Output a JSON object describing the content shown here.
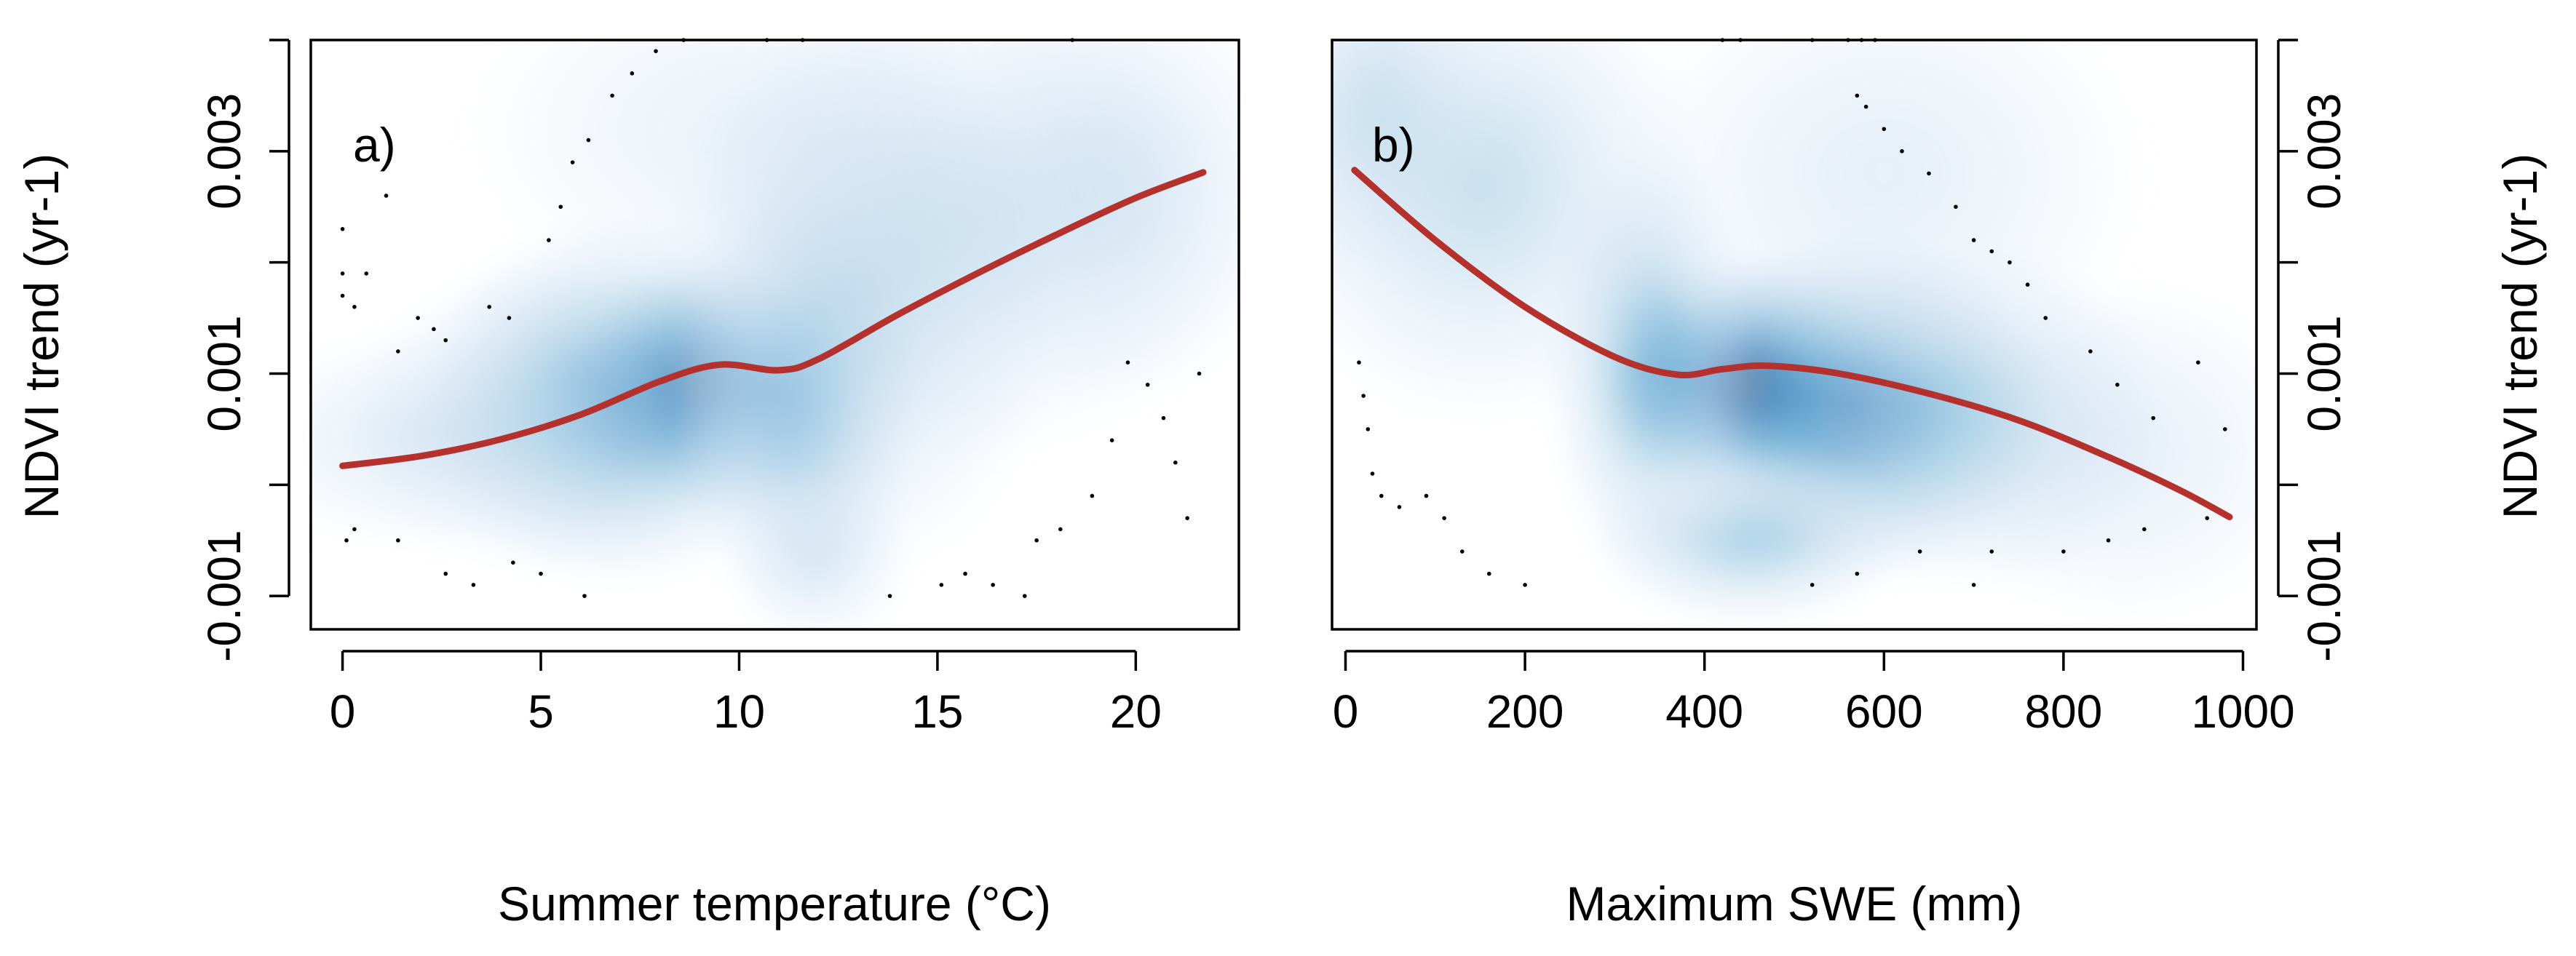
{
  "chart_data": [
    {
      "id": "a",
      "type": "scatter",
      "subtype": "smoothed-density-scatter-with-smoother",
      "panel_label": "a)",
      "xlabel": "Summer temperature (°C)",
      "ylabel": "NDVI trend (yr-1)",
      "y_axis_side": "left",
      "xlim": [
        -0.8,
        22.6
      ],
      "ylim": [
        -0.0013,
        0.004
      ],
      "xticks": [
        0,
        5,
        10,
        15,
        20
      ],
      "xtick_labels": [
        "0",
        "5",
        "10",
        "15",
        "20"
      ],
      "yticks": [
        -0.001,
        0,
        0.001,
        0.002,
        0.003,
        0.004
      ],
      "ytick_labels": [
        "-0.001",
        "",
        "0.001",
        "",
        "0.003",
        ""
      ],
      "series": [
        {
          "name": "smoother",
          "color": "#b5312d",
          "x": [
            0.0,
            2.0,
            4.0,
            6.0,
            8.0,
            9.5,
            11.0,
            12.0,
            14.0,
            16.0,
            18.0,
            20.0,
            21.7
          ],
          "y": [
            0.00017,
            0.00026,
            0.00041,
            0.00063,
            0.00093,
            0.00108,
            0.00103,
            0.00113,
            0.00153,
            0.0019,
            0.00225,
            0.00258,
            0.00281
          ]
        }
      ],
      "density": {
        "colormap": "Blues",
        "cores": [
          {
            "x": 9.0,
            "y": 0.0009,
            "sx": 1.6,
            "sy": 0.00058,
            "w": 1.0
          },
          {
            "x": 7.0,
            "y": 0.00075,
            "sx": 2.6,
            "sy": 0.00085,
            "w": 0.6
          },
          {
            "x": 11.5,
            "y": 0.0008,
            "sx": 1.6,
            "sy": 0.001,
            "w": 0.5
          },
          {
            "x": 5.0,
            "y": 0.0006,
            "sx": 2.5,
            "sy": 0.0007,
            "w": 0.28
          },
          {
            "x": 13.0,
            "y": 0.0017,
            "sx": 2.6,
            "sy": 0.0013,
            "w": 0.3
          },
          {
            "x": 16.0,
            "y": 0.0024,
            "sx": 3.5,
            "sy": 0.0011,
            "w": 0.24
          },
          {
            "x": 19.5,
            "y": 0.0027,
            "sx": 2.5,
            "sy": 0.001,
            "w": 0.2
          },
          {
            "x": 2.0,
            "y": 0.0004,
            "sx": 2.5,
            "sy": 0.0005,
            "w": 0.18
          },
          {
            "x": 10.0,
            "y": 0.0032,
            "sx": 3.5,
            "sy": 0.0008,
            "w": 0.12
          },
          {
            "x": 12.0,
            "y": -0.0007,
            "sx": 1.2,
            "sy": 0.0004,
            "w": 0.18
          }
        ]
      },
      "points": [
        [
          0.0,
          0.0023
        ],
        [
          0.0,
          0.0019
        ],
        [
          0.0,
          0.0017
        ],
        [
          0.3,
          0.0016
        ],
        [
          0.6,
          0.0019
        ],
        [
          1.1,
          0.0026
        ],
        [
          1.4,
          0.0012
        ],
        [
          1.9,
          0.0015
        ],
        [
          2.3,
          0.0014
        ],
        [
          2.6,
          0.0013
        ],
        [
          3.7,
          0.0016
        ],
        [
          4.2,
          0.0015
        ],
        [
          5.2,
          0.0022
        ],
        [
          5.5,
          0.0025
        ],
        [
          5.8,
          0.0029
        ],
        [
          6.2,
          0.0031
        ],
        [
          6.8,
          0.0035
        ],
        [
          7.3,
          0.0037
        ],
        [
          7.9,
          0.0039
        ],
        [
          8.6,
          0.004
        ],
        [
          10.7,
          0.004
        ],
        [
          11.6,
          0.004
        ],
        [
          18.4,
          0.004
        ],
        [
          0.1,
          -0.0005
        ],
        [
          0.3,
          -0.0004
        ],
        [
          1.4,
          -0.0005
        ],
        [
          2.6,
          -0.0008
        ],
        [
          3.3,
          -0.0009
        ],
        [
          4.3,
          -0.0007
        ],
        [
          5.0,
          -0.0008
        ],
        [
          6.1,
          -0.001
        ],
        [
          13.8,
          -0.001
        ],
        [
          15.1,
          -0.0009
        ],
        [
          15.7,
          -0.0008
        ],
        [
          16.4,
          -0.0009
        ],
        [
          17.2,
          -0.001
        ],
        [
          17.5,
          -0.0005
        ],
        [
          18.1,
          -0.0004
        ],
        [
          18.9,
          -0.0001
        ],
        [
          19.4,
          0.0004
        ],
        [
          19.8,
          0.0011
        ],
        [
          20.3,
          0.0009
        ],
        [
          20.7,
          0.0006
        ],
        [
          21.0,
          0.0002
        ],
        [
          21.3,
          -0.0003
        ],
        [
          21.6,
          0.001
        ]
      ]
    },
    {
      "id": "b",
      "type": "scatter",
      "subtype": "smoothed-density-scatter-with-smoother",
      "panel_label": "b)",
      "xlabel": "Maximum SWE (mm)",
      "ylabel": "NDVI trend (yr-1)",
      "y_axis_side": "right",
      "xlim": [
        -15,
        1015
      ],
      "ylim": [
        -0.0013,
        0.004
      ],
      "xticks": [
        0,
        200,
        400,
        600,
        800,
        1000
      ],
      "xtick_labels": [
        "0",
        "200",
        "400",
        "600",
        "800",
        "1000"
      ],
      "yticks": [
        -0.001,
        0,
        0.001,
        0.002,
        0.003,
        0.004
      ],
      "ytick_labels": [
        "-0.001",
        "",
        "0.001",
        "",
        "0.003",
        ""
      ],
      "series": [
        {
          "name": "smoother",
          "color": "#b5312d",
          "x": [
            10,
            100,
            200,
            300,
            370,
            420,
            470,
            550,
            650,
            750,
            850,
            930,
            985
          ],
          "y": [
            0.00283,
            0.0022,
            0.0016,
            0.00115,
            0.00099,
            0.00104,
            0.00107,
            0.001,
            0.00082,
            0.00058,
            0.00025,
            -5e-05,
            -0.00029
          ]
        }
      ],
      "density": {
        "colormap": "Blues",
        "cores": [
          {
            "x": 450,
            "y": 0.0009,
            "sx": 80,
            "sy": 0.0006,
            "w": 1.0
          },
          {
            "x": 570,
            "y": 0.0007,
            "sx": 110,
            "sy": 0.0008,
            "w": 0.7
          },
          {
            "x": 340,
            "y": 0.0011,
            "sx": 60,
            "sy": 0.001,
            "w": 0.5
          },
          {
            "x": 700,
            "y": 0.0006,
            "sx": 110,
            "sy": 0.0008,
            "w": 0.35
          },
          {
            "x": 150,
            "y": 0.0027,
            "sx": 130,
            "sy": 0.0011,
            "w": 0.32
          },
          {
            "x": 30,
            "y": 0.0034,
            "sx": 70,
            "sy": 0.0008,
            "w": 0.25
          },
          {
            "x": 450,
            "y": -0.0005,
            "sx": 90,
            "sy": 0.0004,
            "w": 0.4
          },
          {
            "x": 870,
            "y": 0.0003,
            "sx": 110,
            "sy": 0.0008,
            "w": 0.15
          },
          {
            "x": 600,
            "y": 0.0028,
            "sx": 150,
            "sy": 0.001,
            "w": 0.16
          }
        ]
      },
      "points": [
        [
          420,
          0.004
        ],
        [
          440,
          0.004
        ],
        [
          520,
          0.004
        ],
        [
          560,
          0.004
        ],
        [
          575,
          0.004
        ],
        [
          590,
          0.004
        ],
        [
          570,
          0.0035
        ],
        [
          580,
          0.0034
        ],
        [
          600,
          0.0032
        ],
        [
          620,
          0.003
        ],
        [
          650,
          0.0028
        ],
        [
          680,
          0.0025
        ],
        [
          700,
          0.0022
        ],
        [
          720,
          0.0021
        ],
        [
          740,
          0.002
        ],
        [
          760,
          0.0018
        ],
        [
          780,
          0.0015
        ],
        [
          830,
          0.0012
        ],
        [
          860,
          0.0009
        ],
        [
          900,
          0.0006
        ],
        [
          950,
          0.0011
        ],
        [
          980,
          0.0005
        ],
        [
          15,
          0.0011
        ],
        [
          20,
          0.0008
        ],
        [
          25,
          0.0005
        ],
        [
          30,
          0.0001
        ],
        [
          40,
          -0.0001
        ],
        [
          60,
          -0.0002
        ],
        [
          90,
          -0.0001
        ],
        [
          110,
          -0.0003
        ],
        [
          130,
          -0.0006
        ],
        [
          160,
          -0.0008
        ],
        [
          200,
          -0.0009
        ],
        [
          520,
          -0.0009
        ],
        [
          570,
          -0.0008
        ],
        [
          640,
          -0.0006
        ],
        [
          700,
          -0.0009
        ],
        [
          720,
          -0.0006
        ],
        [
          800,
          -0.0006
        ],
        [
          850,
          -0.0005
        ],
        [
          890,
          -0.0004
        ],
        [
          960,
          -0.0003
        ]
      ]
    }
  ]
}
